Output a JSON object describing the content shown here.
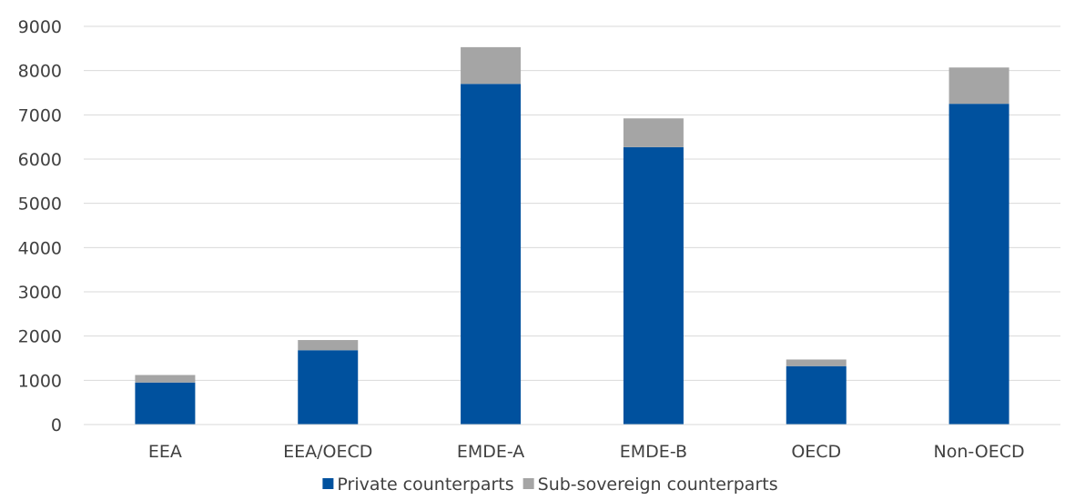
{
  "chart_data": {
    "type": "bar",
    "stacked": true,
    "categories": [
      "EEA",
      "EEA/OECD",
      "EMDE-A",
      "EMDE-B",
      "OECD",
      "Non-OECD"
    ],
    "series": [
      {
        "name": "Private counterparts",
        "color": "#00519e",
        "values": [
          950,
          1680,
          7700,
          6270,
          1320,
          7250
        ]
      },
      {
        "name": "Sub-sovereign counterparts",
        "color": "#a5a5a5",
        "values": [
          170,
          230,
          830,
          650,
          150,
          820
        ]
      }
    ],
    "ylim": [
      0,
      9000
    ],
    "yticks": [
      0,
      1000,
      2000,
      3000,
      4000,
      5000,
      6000,
      7000,
      8000,
      9000
    ],
    "grid": true,
    "legend_position": "bottom"
  }
}
